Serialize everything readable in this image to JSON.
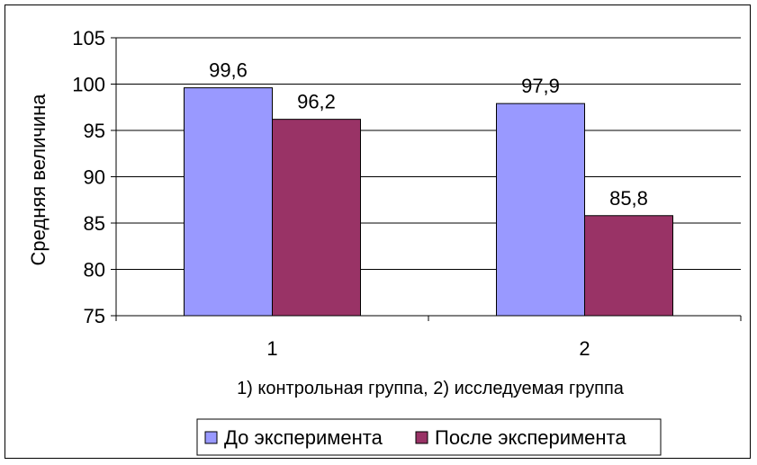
{
  "chart_data": {
    "type": "bar",
    "title": "",
    "xlabel": "1) контрольная группа, 2) исследуемая группа",
    "ylabel": "Средняя величина",
    "categories": [
      "1",
      "2"
    ],
    "series": [
      {
        "name": "До эксперимента",
        "values": [
          99.6,
          97.9
        ],
        "labels": [
          "99,6",
          "97,9"
        ],
        "color": "#9999ff"
      },
      {
        "name": "После эксперимента",
        "values": [
          96.2,
          85.8
        ],
        "labels": [
          "96,2",
          "85,8"
        ],
        "color": "#993366"
      }
    ],
    "ylim": [
      75,
      105
    ],
    "yticks": [
      "75",
      "80",
      "85",
      "90",
      "95",
      "100",
      "105"
    ],
    "grid": true,
    "legend_position": "bottom"
  }
}
